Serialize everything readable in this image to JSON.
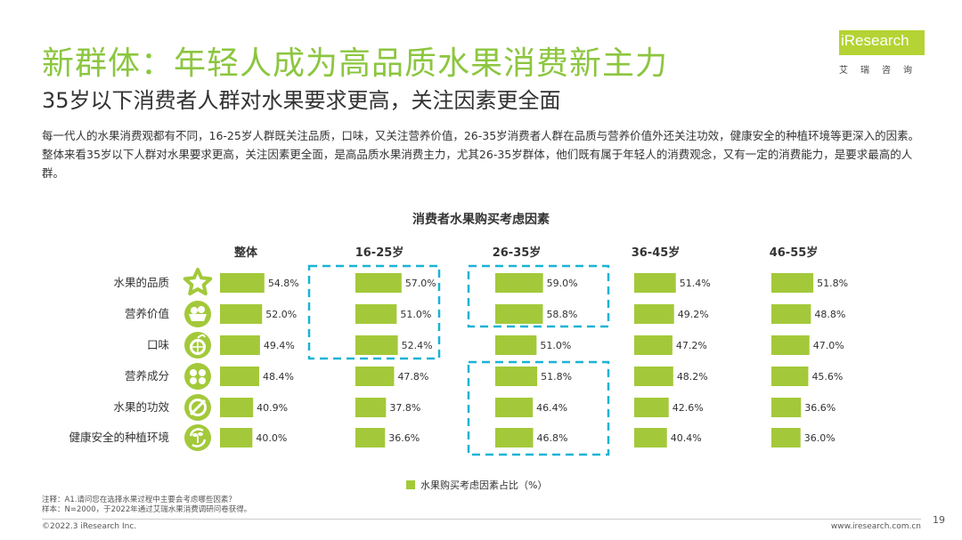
{
  "header": {
    "title": "新群体：年轻人成为高品质水果消费新主力",
    "subtitle": "35岁以下消费者人群对水果要求更高，关注因素更全面",
    "intro": "每一代人的水果消费观都有不同，16-25岁人群既关注品质，口味，又关注营养价值，26-35岁消费者人群在品质与营养价值外还关注功效，健康安全的种植环境等更深入的因素。整体来看35岁以下人群对水果要求更高，关注因素更全面，是高品质水果消费主力，尤其26-35岁群体，他们既有属于年轻人的消费观念，又有一定的消费能力，是要求最高的人群。"
  },
  "logo": {
    "brand": "iResearch",
    "sub": "艾瑞咨询"
  },
  "chart_data": {
    "type": "bar",
    "orientation": "horizontal",
    "title": "消费者水果购买考虑因素",
    "categories": [
      "水果的品质",
      "营养价值",
      "口味",
      "营养成分",
      "水果的功效",
      "健康安全的种植环境"
    ],
    "category_icons": [
      "star-icon",
      "vegetable-basket-icon",
      "orange-slice-icon",
      "nutrients-icon",
      "no-symbol-icon",
      "recycle-plant-icon"
    ],
    "series": [
      {
        "name": "整体",
        "values": [
          54.8,
          52.0,
          49.4,
          48.4,
          40.9,
          40.0
        ]
      },
      {
        "name": "16-25岁",
        "values": [
          57.0,
          51.0,
          52.4,
          47.8,
          37.8,
          36.6
        ]
      },
      {
        "name": "26-35岁",
        "values": [
          59.0,
          58.8,
          51.0,
          51.8,
          46.4,
          46.8
        ]
      },
      {
        "name": "36-45岁",
        "values": [
          51.4,
          49.2,
          47.2,
          48.2,
          42.6,
          40.4
        ]
      },
      {
        "name": "46-55岁",
        "values": [
          51.8,
          48.8,
          47.0,
          45.6,
          36.6,
          36.0
        ]
      }
    ],
    "value_labels": [
      [
        "54.8%",
        "52.0%",
        "49.4%",
        "48.4%",
        "40.9%",
        "40.0%"
      ],
      [
        "57.0%",
        "51.0%",
        "52.4%",
        "47.8%",
        "37.8%",
        "36.6%"
      ],
      [
        "59.0%",
        "58.8%",
        "51.0%",
        "51.8%",
        "46.4%",
        "46.8%"
      ],
      [
        "51.4%",
        "49.2%",
        "47.2%",
        "48.2%",
        "42.6%",
        "40.4%"
      ],
      [
        "51.8%",
        "48.8%",
        "47.0%",
        "45.6%",
        "36.6%",
        "36.0%"
      ]
    ],
    "highlight_groups": [
      {
        "series": "16-25岁",
        "categories": [
          "水果的品质",
          "营养价值",
          "口味"
        ]
      },
      {
        "series": "26-35岁",
        "categories": [
          "水果的品质",
          "营养价值"
        ]
      },
      {
        "series": "26-35岁",
        "categories": [
          "营养成分",
          "水果的功效",
          "健康安全的种植环境"
        ]
      }
    ],
    "legend": "水果购买考虑因素占比（%）",
    "bar_color": "#a3c93a",
    "icon_color": "#a3c93a",
    "highlight_color": "#1ab3d6"
  },
  "footer": {
    "note1": "注释：A1.请问您在选择水果过程中主要会考虑哪些因素？",
    "note2": "样本：N=2000，于2022年通过艾瑞水果消费调研问卷获得。",
    "copyright": "©2022.3 iResearch Inc.",
    "site": "www.iresearch.com.cn",
    "page": "19"
  }
}
